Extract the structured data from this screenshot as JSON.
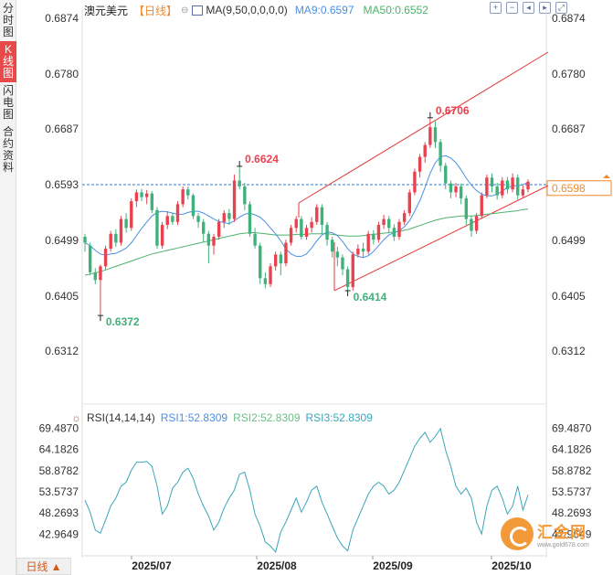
{
  "sidebar": {
    "tabs": [
      {
        "label": "分时图",
        "active": false
      },
      {
        "label": "K线图",
        "active": true
      },
      {
        "label": "闪电图",
        "active": false
      },
      {
        "label": "合约资料",
        "active": false
      }
    ]
  },
  "header": {
    "symbol": "澳元美元",
    "period": "【日线】",
    "ma_label": "MA(9,50,0,0,0,0)",
    "ma9": "MA9:0.6597",
    "ma50": "MA50:0.6552"
  },
  "toolbar": {
    "icons": [
      "zoom-in-icon",
      "zoom-out-icon",
      "scroll-left-icon",
      "scroll-right-icon",
      "fullscreen-icon"
    ]
  },
  "price_axis": {
    "left_ticks": [
      "0.6874",
      "0.6780",
      "0.6687",
      "0.6593",
      "0.6499",
      "0.6405",
      "0.6312"
    ],
    "right_ticks": [
      "0.6874",
      "0.6780",
      "0.6687",
      "0.6499",
      "0.6405",
      "0.6312"
    ],
    "current_price": "0.6598"
  },
  "annotations": {
    "high1": "0.6624",
    "high2": "0.6706",
    "low1": "0.6372",
    "low2": "0.6414"
  },
  "rsi": {
    "title": "RSI(14,14,14)",
    "rsi1": "RSI1:52.8309",
    "rsi2": "RSI2:52.8309",
    "rsi3": "RSI3:52.8309",
    "ticks": [
      "69.4870",
      "64.1826",
      "58.8782",
      "53.5737",
      "48.2693",
      "42.9649"
    ]
  },
  "time_axis": {
    "labels": [
      "2025/07",
      "2025/08",
      "2025/09",
      "2025/10"
    ]
  },
  "period_button": {
    "label": "日线"
  },
  "logo": {
    "name": "汇金网",
    "url": "www.gold678.com"
  },
  "colors": {
    "up": "#e8424f",
    "down": "#3fb17a",
    "ma9": "#4a90e2",
    "ma50": "#4cb26b",
    "channel": "#e03a3a",
    "rsi": "#3aa6b9"
  },
  "chart_data": [
    {
      "type": "candlestick",
      "title": "澳元美元 日线",
      "ylim": [
        0.6312,
        0.6874
      ],
      "x_labels": [
        "2025/07",
        "2025/08",
        "2025/09",
        "2025/10"
      ],
      "candles": [
        [
          0.6505,
          0.6495,
          0.651,
          0.648
        ],
        [
          0.649,
          0.6445,
          0.6495,
          0.644
        ],
        [
          0.6445,
          0.6432,
          0.6452,
          0.6425
        ],
        [
          0.6432,
          0.6455,
          0.6458,
          0.6372
        ],
        [
          0.6455,
          0.6485,
          0.649,
          0.645
        ],
        [
          0.6485,
          0.651,
          0.6515,
          0.648
        ],
        [
          0.651,
          0.6495,
          0.6518,
          0.6488
        ],
        [
          0.6495,
          0.6535,
          0.654,
          0.649
        ],
        [
          0.6535,
          0.652,
          0.6545,
          0.6512
        ],
        [
          0.652,
          0.6565,
          0.657,
          0.6515
        ],
        [
          0.6565,
          0.658,
          0.6585,
          0.6555
        ],
        [
          0.658,
          0.6572,
          0.6586,
          0.6565
        ],
        [
          0.6572,
          0.6578,
          0.6584,
          0.656
        ],
        [
          0.6578,
          0.655,
          0.6582,
          0.6545
        ],
        [
          0.655,
          0.649,
          0.6555,
          0.6485
        ],
        [
          0.649,
          0.6525,
          0.653,
          0.6485
        ],
        [
          0.6525,
          0.654,
          0.6548,
          0.6518
        ],
        [
          0.654,
          0.653,
          0.6546,
          0.6525
        ],
        [
          0.653,
          0.656,
          0.6565,
          0.6525
        ],
        [
          0.656,
          0.6585,
          0.659,
          0.6555
        ],
        [
          0.6585,
          0.6575,
          0.659,
          0.6568
        ],
        [
          0.6575,
          0.654,
          0.6578,
          0.6535
        ],
        [
          0.654,
          0.653,
          0.6545,
          0.652
        ],
        [
          0.653,
          0.651,
          0.6535,
          0.6495
        ],
        [
          0.651,
          0.649,
          0.6515,
          0.646
        ],
        [
          0.649,
          0.6505,
          0.651,
          0.6475
        ],
        [
          0.6505,
          0.653,
          0.6535,
          0.65
        ],
        [
          0.653,
          0.6545,
          0.655,
          0.652
        ],
        [
          0.6545,
          0.6535,
          0.6552,
          0.6525
        ],
        [
          0.6535,
          0.66,
          0.661,
          0.653
        ],
        [
          0.66,
          0.659,
          0.6624,
          0.6585
        ],
        [
          0.659,
          0.656,
          0.6596,
          0.655
        ],
        [
          0.656,
          0.651,
          0.6565,
          0.6505
        ],
        [
          0.651,
          0.649,
          0.652,
          0.6485
        ],
        [
          0.649,
          0.6435,
          0.6495,
          0.6425
        ],
        [
          0.6435,
          0.6425,
          0.6445,
          0.6418
        ],
        [
          0.6425,
          0.6455,
          0.646,
          0.642
        ],
        [
          0.6455,
          0.6475,
          0.648,
          0.6448
        ],
        [
          0.6475,
          0.646,
          0.648,
          0.644
        ],
        [
          0.646,
          0.6495,
          0.65,
          0.6455
        ],
        [
          0.6495,
          0.652,
          0.6525,
          0.649
        ],
        [
          0.652,
          0.6535,
          0.654,
          0.6512
        ],
        [
          0.6535,
          0.6505,
          0.654,
          0.65
        ],
        [
          0.6505,
          0.652,
          0.6525,
          0.65
        ],
        [
          0.652,
          0.653,
          0.6538,
          0.6512
        ],
        [
          0.653,
          0.6555,
          0.656,
          0.6525
        ],
        [
          0.6555,
          0.6525,
          0.656,
          0.651
        ],
        [
          0.6525,
          0.65,
          0.653,
          0.649
        ],
        [
          0.65,
          0.648,
          0.6505,
          0.647
        ],
        [
          0.648,
          0.647,
          0.6488,
          0.6455
        ],
        [
          0.647,
          0.645,
          0.6475,
          0.644
        ],
        [
          0.645,
          0.642,
          0.6455,
          0.6414
        ],
        [
          0.642,
          0.6475,
          0.648,
          0.6414
        ],
        [
          0.6475,
          0.6485,
          0.6492,
          0.647
        ],
        [
          0.6485,
          0.648,
          0.6495,
          0.647
        ],
        [
          0.648,
          0.651,
          0.6515,
          0.6475
        ],
        [
          0.651,
          0.65,
          0.6516,
          0.6492
        ],
        [
          0.65,
          0.6525,
          0.653,
          0.6495
        ],
        [
          0.6525,
          0.6535,
          0.6542,
          0.6518
        ],
        [
          0.6535,
          0.652,
          0.654,
          0.6512
        ],
        [
          0.652,
          0.6505,
          0.6526,
          0.6498
        ],
        [
          0.6505,
          0.653,
          0.6535,
          0.65
        ],
        [
          0.653,
          0.6545,
          0.655,
          0.6525
        ],
        [
          0.6545,
          0.658,
          0.6585,
          0.654
        ],
        [
          0.658,
          0.6615,
          0.662,
          0.6575
        ],
        [
          0.6615,
          0.664,
          0.6645,
          0.6605
        ],
        [
          0.664,
          0.666,
          0.6665,
          0.663
        ],
        [
          0.666,
          0.669,
          0.6706,
          0.6655
        ],
        [
          0.669,
          0.6665,
          0.67,
          0.6655
        ],
        [
          0.6665,
          0.6625,
          0.667,
          0.6615
        ],
        [
          0.6625,
          0.6595,
          0.663,
          0.6585
        ],
        [
          0.6595,
          0.658,
          0.66,
          0.657
        ],
        [
          0.658,
          0.659,
          0.6596,
          0.6572
        ],
        [
          0.659,
          0.657,
          0.6595,
          0.656
        ],
        [
          0.657,
          0.6535,
          0.6575,
          0.6525
        ],
        [
          0.6535,
          0.6515,
          0.654,
          0.6505
        ],
        [
          0.6515,
          0.654,
          0.6545,
          0.651
        ],
        [
          0.654,
          0.6575,
          0.658,
          0.6535
        ],
        [
          0.6575,
          0.6605,
          0.661,
          0.657
        ],
        [
          0.6605,
          0.659,
          0.6612,
          0.658
        ],
        [
          0.659,
          0.6575,
          0.6596,
          0.6568
        ],
        [
          0.6575,
          0.66,
          0.6606,
          0.657
        ],
        [
          0.66,
          0.6585,
          0.6606,
          0.6578
        ],
        [
          0.6585,
          0.6605,
          0.6612,
          0.658
        ],
        [
          0.6605,
          0.6575,
          0.661,
          0.6568
        ],
        [
          0.6575,
          0.6585,
          0.6592,
          0.657
        ],
        [
          0.6585,
          0.6598,
          0.6602,
          0.658
        ]
      ],
      "ma9": [
        0.6495,
        0.649,
        0.6482,
        0.6476,
        0.6474,
        0.6476,
        0.6477,
        0.6481,
        0.6486,
        0.6495,
        0.6507,
        0.6519,
        0.653,
        0.654,
        0.6546,
        0.6548,
        0.6547,
        0.6545,
        0.6543,
        0.6543,
        0.6546,
        0.6548,
        0.6548,
        0.6545,
        0.654,
        0.6535,
        0.6531,
        0.6529,
        0.6527,
        0.6532,
        0.6538,
        0.6543,
        0.6545,
        0.6542,
        0.6538,
        0.653,
        0.652,
        0.651,
        0.6498,
        0.6485,
        0.6476,
        0.6472,
        0.6472,
        0.6476,
        0.6486,
        0.6498,
        0.6508,
        0.6513,
        0.6512,
        0.6507,
        0.6497,
        0.6485,
        0.6476,
        0.6472,
        0.647,
        0.6473,
        0.648,
        0.649,
        0.65,
        0.6508,
        0.6512,
        0.6515,
        0.6522,
        0.6532,
        0.6548,
        0.6566,
        0.6588,
        0.6612,
        0.663,
        0.664,
        0.6642,
        0.6638,
        0.663,
        0.6618,
        0.6604,
        0.6592,
        0.6583,
        0.6577,
        0.6574,
        0.6574,
        0.6577,
        0.6582,
        0.6588,
        0.6591,
        0.6591,
        0.6593,
        0.6597
      ],
      "ma50": [
        0.644,
        0.6442,
        0.6444,
        0.6446,
        0.6449,
        0.6452,
        0.6455,
        0.6458,
        0.6461,
        0.6464,
        0.6467,
        0.647,
        0.6473,
        0.6476,
        0.6478,
        0.648,
        0.6482,
        0.6484,
        0.6486,
        0.6488,
        0.649,
        0.6492,
        0.6494,
        0.6496,
        0.6498,
        0.65,
        0.6502,
        0.6504,
        0.6506,
        0.6508,
        0.651,
        0.6511,
        0.6512,
        0.6512,
        0.6511,
        0.651,
        0.6509,
        0.6508,
        0.6508,
        0.6508,
        0.6508,
        0.6509,
        0.6509,
        0.6509,
        0.651,
        0.651,
        0.651,
        0.651,
        0.6509,
        0.6508,
        0.6507,
        0.6506,
        0.6506,
        0.6506,
        0.6507,
        0.6508,
        0.6509,
        0.651,
        0.6511,
        0.6512,
        0.6513,
        0.6514,
        0.6516,
        0.6518,
        0.6521,
        0.6524,
        0.6527,
        0.653,
        0.6533,
        0.6535,
        0.6537,
        0.6538,
        0.6539,
        0.654,
        0.654,
        0.654,
        0.6541,
        0.6542,
        0.6543,
        0.6544,
        0.6545,
        0.6546,
        0.6547,
        0.6548,
        0.6549,
        0.6551,
        0.6552
      ],
      "channel": {
        "lower": [
          [
            0.6414,
            0.6414
          ],
          [
            0.6598,
            0.66
          ]
        ],
        "upper": [
          [
            0.656,
            0.656
          ],
          [
            0.682,
            0.682
          ]
        ]
      },
      "reference_line": 0.6593
    },
    {
      "type": "line",
      "title": "RSI(14,14,14)",
      "ylim": [
        38.0,
        71.0
      ],
      "values": [
        51.5,
        48.5,
        44.0,
        43.2,
        46.5,
        50.0,
        52.0,
        55.0,
        56.0,
        59.0,
        61.0,
        61.0,
        61.2,
        60.0,
        55.0,
        48.0,
        50.0,
        54.5,
        56.0,
        58.5,
        59.5,
        57.0,
        53.0,
        50.0,
        47.5,
        44.0,
        46.0,
        49.5,
        52.0,
        54.0,
        58.0,
        58.5,
        54.0,
        48.0,
        45.0,
        41.0,
        40.0,
        38.5,
        43.5,
        46.0,
        49.0,
        52.0,
        48.5,
        51.0,
        54.0,
        55.0,
        51.0,
        48.0,
        45.0,
        42.0,
        40.0,
        38.8,
        44.0,
        47.0,
        50.0,
        53.0,
        55.0,
        56.0,
        55.0,
        53.0,
        54.0,
        56.0,
        59.0,
        62.0,
        65.0,
        67.0,
        68.5,
        66.0,
        67.5,
        69.4,
        64.0,
        60.0,
        55.0,
        53.0,
        54.5,
        52.0,
        46.0,
        43.0,
        50.0,
        54.0,
        55.0,
        52.0,
        48.0,
        50.0,
        55.0,
        49.0,
        52.8
      ]
    }
  ]
}
